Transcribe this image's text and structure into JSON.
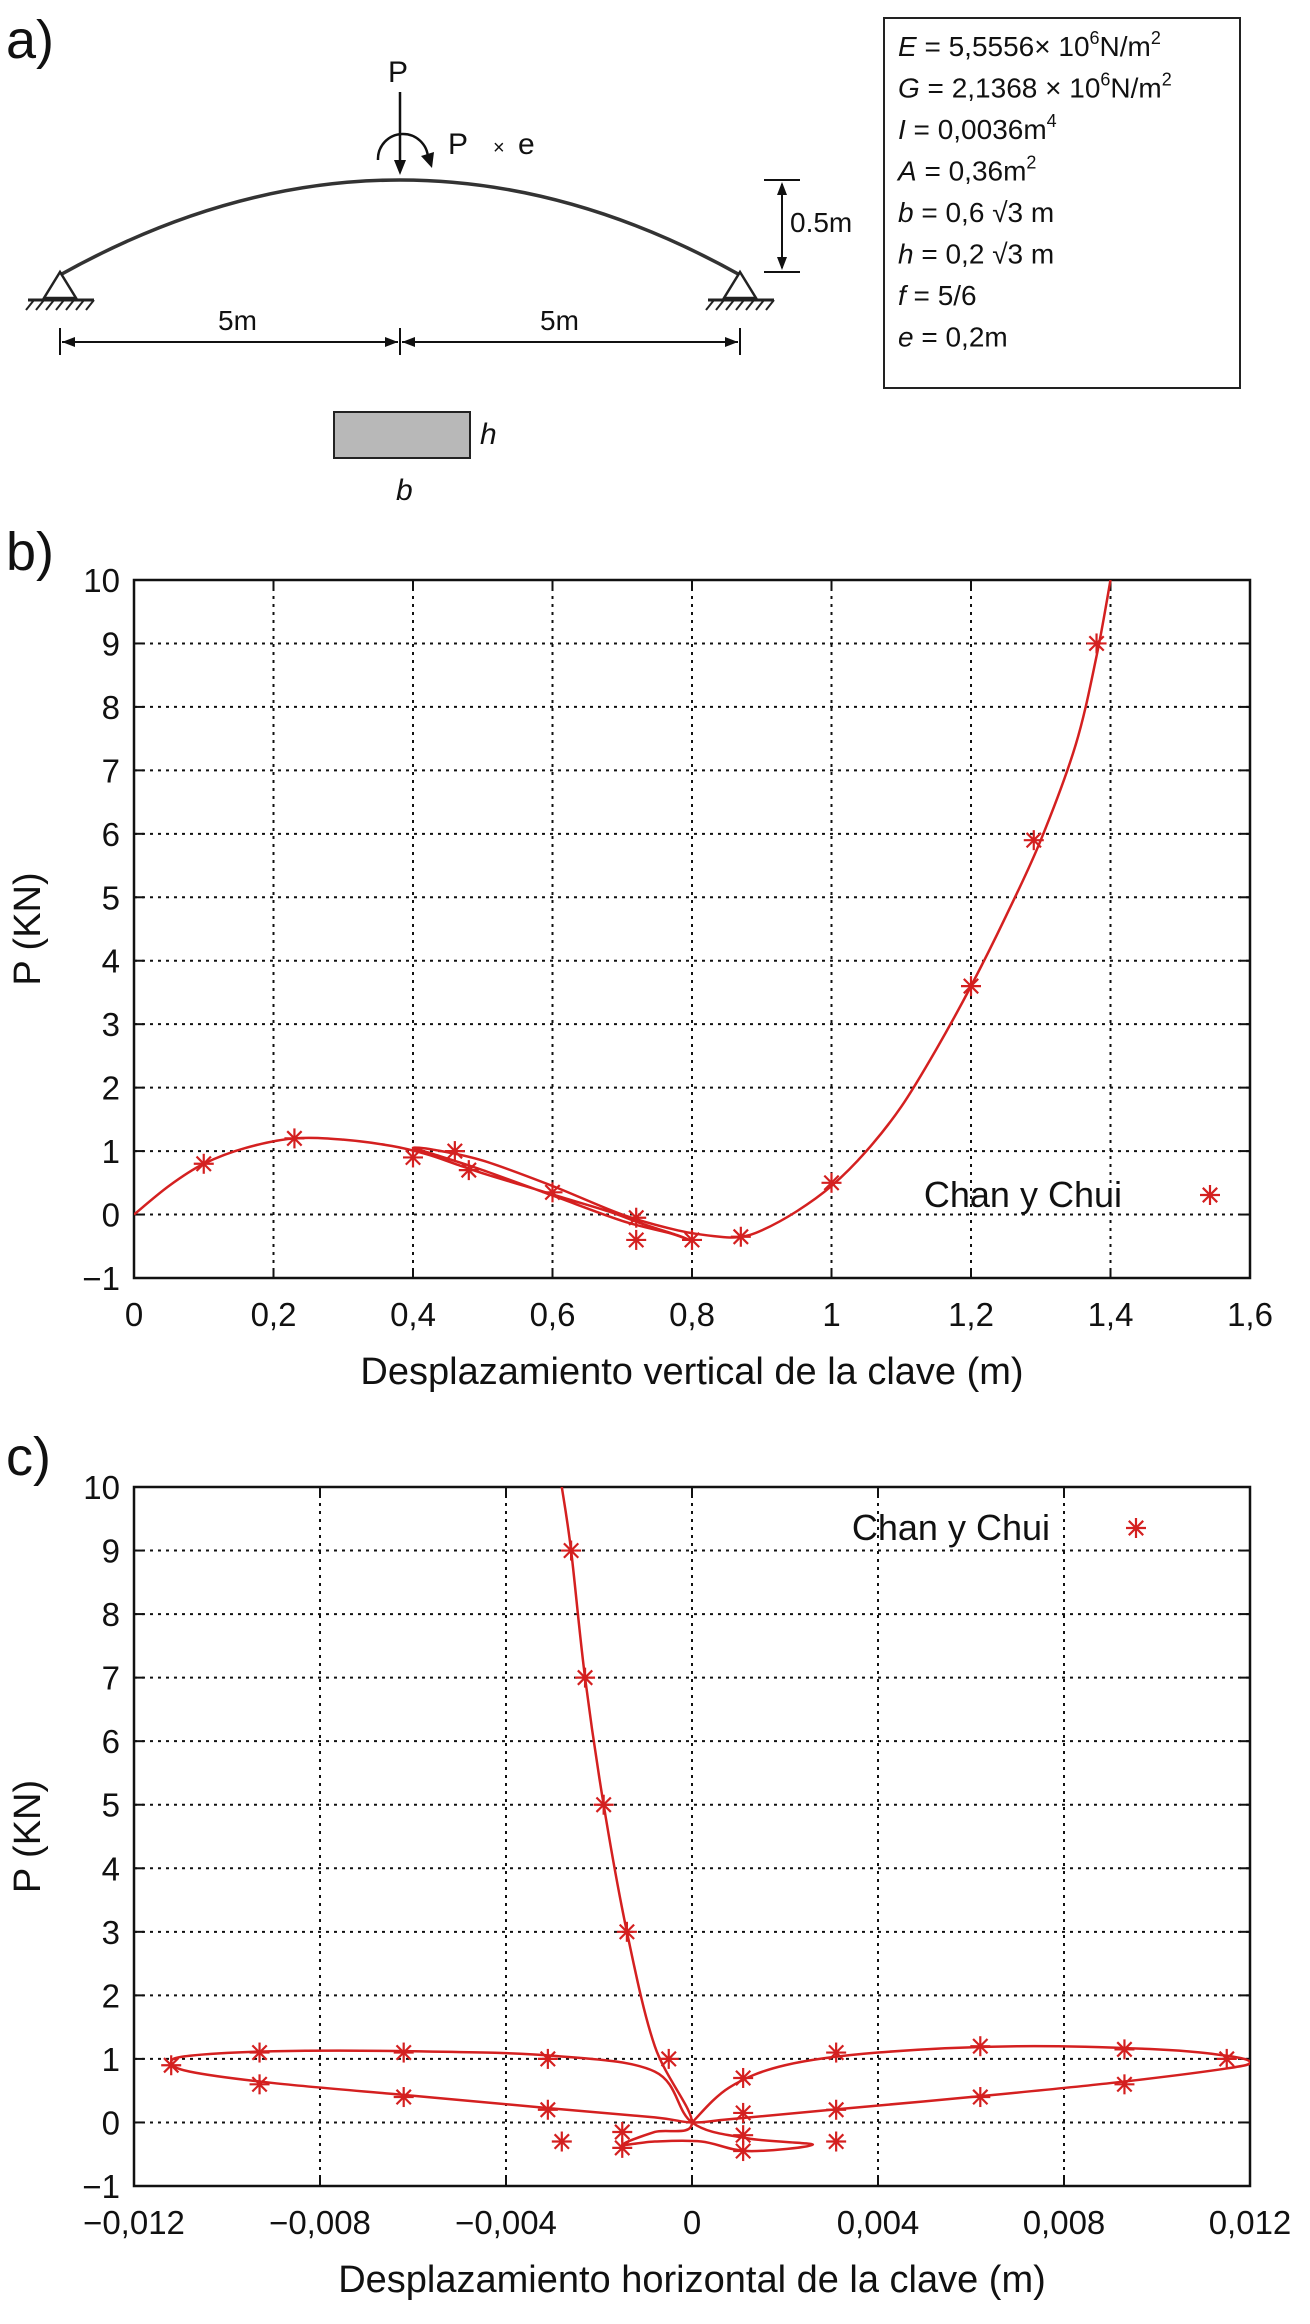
{
  "panel_a": {
    "letter": "a)",
    "load_label": "P",
    "moment_label_p": "P",
    "moment_label_x": "×",
    "moment_label_e": "e",
    "rise_label": "0.5m",
    "span_left": "5m",
    "span_right": "5m",
    "section_h": "h",
    "section_b": "b",
    "props": [
      {
        "sym": "E",
        "rest": " =   5,5556× 10",
        "sup": "6",
        "tail": "N/m",
        "sup2": "2"
      },
      {
        "sym": "G",
        "rest": " = 2,1368 × 10",
        "sup": "6",
        "tail": "N/m",
        "sup2": "2"
      },
      {
        "sym": "I",
        "rest": " = 0,0036m",
        "sup": "4",
        "tail": "",
        "sup2": ""
      },
      {
        "sym": "A",
        "rest": " = 0,36m",
        "sup": "2",
        "tail": "",
        "sup2": ""
      },
      {
        "sym": "b",
        "rest": " = 0,6 √3 m",
        "sup": "",
        "tail": "",
        "sup2": ""
      },
      {
        "sym": "h",
        "rest": " = 0,2 √3 m",
        "sup": "",
        "tail": "",
        "sup2": ""
      },
      {
        "sym": "f",
        "rest": " = 5/6",
        "sup": "",
        "tail": "",
        "sup2": ""
      },
      {
        "sym": "e",
        "rest": " = 0,2m",
        "sup": "",
        "tail": "",
        "sup2": ""
      }
    ]
  },
  "panel_b_letter": "b)",
  "panel_c_letter": "c)",
  "colors": {
    "series": "#d42020",
    "axis": "#111111"
  },
  "chart_data": [
    {
      "type": "line",
      "xlabel": "Desplazamiento vertical de la clave (m)",
      "ylabel": "P (KN)",
      "xlim": [
        0,
        1.6
      ],
      "ylim": [
        -1,
        10
      ],
      "xticks": [
        0,
        0.2,
        0.4,
        0.6,
        0.8,
        1,
        1.2,
        1.4,
        1.6
      ],
      "xtick_labels": [
        "0",
        "0,2",
        "0,4",
        "0,6",
        "0,8",
        "1",
        "1,2",
        "1,4",
        "1,6"
      ],
      "yticks": [
        -1,
        0,
        1,
        2,
        3,
        4,
        5,
        6,
        7,
        8,
        9,
        10
      ],
      "ytick_labels": [
        "−1",
        "0",
        "1",
        "2",
        "3",
        "4",
        "5",
        "6",
        "7",
        "8",
        "9",
        "10"
      ],
      "grid": true,
      "legend_position": "right",
      "series": [
        {
          "name": "",
          "style": "line",
          "x": [
            0,
            0.05,
            0.1,
            0.16,
            0.23,
            0.3,
            0.37,
            0.42,
            0.46,
            0.5,
            0.56,
            0.62,
            0.68,
            0.73,
            0.78,
            0.8,
            0.77,
            0.7,
            0.6,
            0.5,
            0.43,
            0.4,
            0.43,
            0.5,
            0.6,
            0.7,
            0.78,
            0.84,
            0.87,
            0.9,
            0.95,
            1.0,
            1.05,
            1.1,
            1.15,
            1.2,
            1.25,
            1.3,
            1.35,
            1.38,
            1.4
          ],
          "y": [
            0,
            0.45,
            0.8,
            1.05,
            1.2,
            1.18,
            1.08,
            0.95,
            0.8,
            0.65,
            0.45,
            0.25,
            0.05,
            -0.15,
            -0.33,
            -0.42,
            -0.3,
            -0.1,
            0.3,
            0.7,
            0.95,
            1.05,
            1.02,
            0.85,
            0.45,
            0.0,
            -0.25,
            -0.35,
            -0.35,
            -0.25,
            0.05,
            0.45,
            1.0,
            1.7,
            2.6,
            3.6,
            4.7,
            5.9,
            7.4,
            8.8,
            10
          ]
        },
        {
          "name": "Chan y Chui",
          "style": "markers",
          "x": [
            0.1,
            0.23,
            0.4,
            0.46,
            0.48,
            0.6,
            0.72,
            0.72,
            0.8,
            0.87,
            1.0,
            1.2,
            1.29,
            1.38
          ],
          "y": [
            0.8,
            1.2,
            0.9,
            1.0,
            0.7,
            0.35,
            -0.05,
            -0.4,
            -0.4,
            -0.35,
            0.5,
            3.6,
            5.9,
            9.0
          ]
        }
      ]
    },
    {
      "type": "line",
      "xlabel": "Desplazamiento horizontal de la clave (m)",
      "ylabel": "P (KN)",
      "xlim": [
        -0.012,
        0.012
      ],
      "ylim": [
        -1,
        10
      ],
      "xticks": [
        -0.012,
        -0.008,
        -0.004,
        0,
        0.004,
        0.008,
        0.012
      ],
      "xtick_labels": [
        "−0,012",
        "−0,008",
        "−0,004",
        "0",
        "0,004",
        "0,008",
        "0,012"
      ],
      "yticks": [
        -1,
        0,
        1,
        2,
        3,
        4,
        5,
        6,
        7,
        8,
        9,
        10
      ],
      "ytick_labels": [
        "−1",
        "0",
        "1",
        "2",
        "3",
        "4",
        "5",
        "6",
        "7",
        "8",
        "9",
        "10"
      ],
      "grid": true,
      "legend_position": "top-right",
      "series": [
        {
          "name": "",
          "style": "line",
          "x": [
            0,
            0.0008,
            0.002,
            0.004,
            0.007,
            0.01,
            0.0115,
            0.012,
            0.0115,
            0.009,
            0.006,
            0.003,
            0.0008,
            0,
            -0.0008,
            -0.003,
            -0.006,
            -0.009,
            -0.0108,
            -0.0112,
            -0.0108,
            -0.009,
            -0.006,
            -0.003,
            -0.0008,
            0,
            0.0012,
            0.0026,
            0.0012,
            0.0002,
            -0.0008,
            -0.0015,
            -0.0008,
            0,
            -0.0008,
            -0.0014,
            -0.0019,
            -0.0023,
            -0.0026,
            -0.0028
          ],
          "y": [
            0,
            0.55,
            0.9,
            1.1,
            1.2,
            1.15,
            1.05,
            0.95,
            0.85,
            0.62,
            0.4,
            0.2,
            0.05,
            0,
            0.08,
            0.22,
            0.42,
            0.62,
            0.8,
            0.95,
            1.05,
            1.12,
            1.12,
            1.05,
            0.8,
            0,
            -0.25,
            -0.35,
            -0.45,
            -0.3,
            -0.3,
            -0.35,
            -0.15,
            0,
            1.2,
            3.0,
            5.0,
            7.0,
            9.0,
            10
          ]
        },
        {
          "name": "Chan y Chui",
          "style": "markers",
          "x": [
            -0.0112,
            -0.0093,
            -0.0093,
            -0.0062,
            -0.0062,
            -0.0031,
            -0.0031,
            -0.0028,
            -0.0015,
            -0.0015,
            -0.0005,
            0.0011,
            0.0011,
            0.0011,
            0.0011,
            0.0031,
            0.0031,
            0.0031,
            0.0062,
            0.0062,
            0.0093,
            0.0093,
            0.0115,
            -0.0014,
            -0.0019,
            -0.0023,
            -0.0026
          ],
          "y": [
            0.9,
            1.1,
            0.6,
            1.1,
            0.4,
            1.0,
            0.2,
            -0.3,
            -0.15,
            -0.4,
            1.0,
            0.7,
            0.15,
            -0.2,
            -0.45,
            1.1,
            0.2,
            -0.3,
            1.2,
            0.4,
            1.15,
            0.6,
            1.0,
            3.0,
            5.0,
            7.0,
            9.0
          ]
        }
      ]
    }
  ]
}
